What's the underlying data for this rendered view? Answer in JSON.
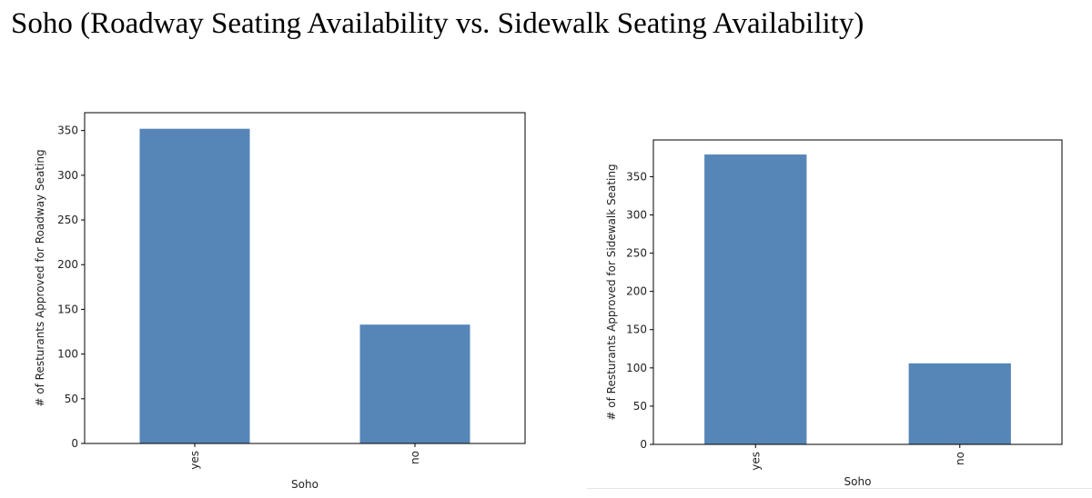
{
  "page": {
    "title": "Soho (Roadway Seating Availability vs. Sidewalk Seating Availability)"
  },
  "chart_data": [
    {
      "type": "bar",
      "categories": [
        "yes",
        "no"
      ],
      "values": [
        352,
        133
      ],
      "xlabel": "Soho",
      "ylabel": "# of Resturants Approved for Roadway Seating",
      "ylim": [
        0,
        370
      ],
      "yticks": [
        0,
        50,
        100,
        150,
        200,
        250,
        300,
        350
      ],
      "grid": false,
      "bar_color": "#5686b8"
    },
    {
      "type": "bar",
      "categories": [
        "yes",
        "no"
      ],
      "values": [
        379,
        106
      ],
      "xlabel": "Soho",
      "ylabel": "# of Resturants Approved for Sidewalk Seating",
      "ylim": [
        0,
        398
      ],
      "yticks": [
        0,
        50,
        100,
        150,
        200,
        250,
        300,
        350
      ],
      "grid": false,
      "bar_color": "#5686b8"
    }
  ]
}
